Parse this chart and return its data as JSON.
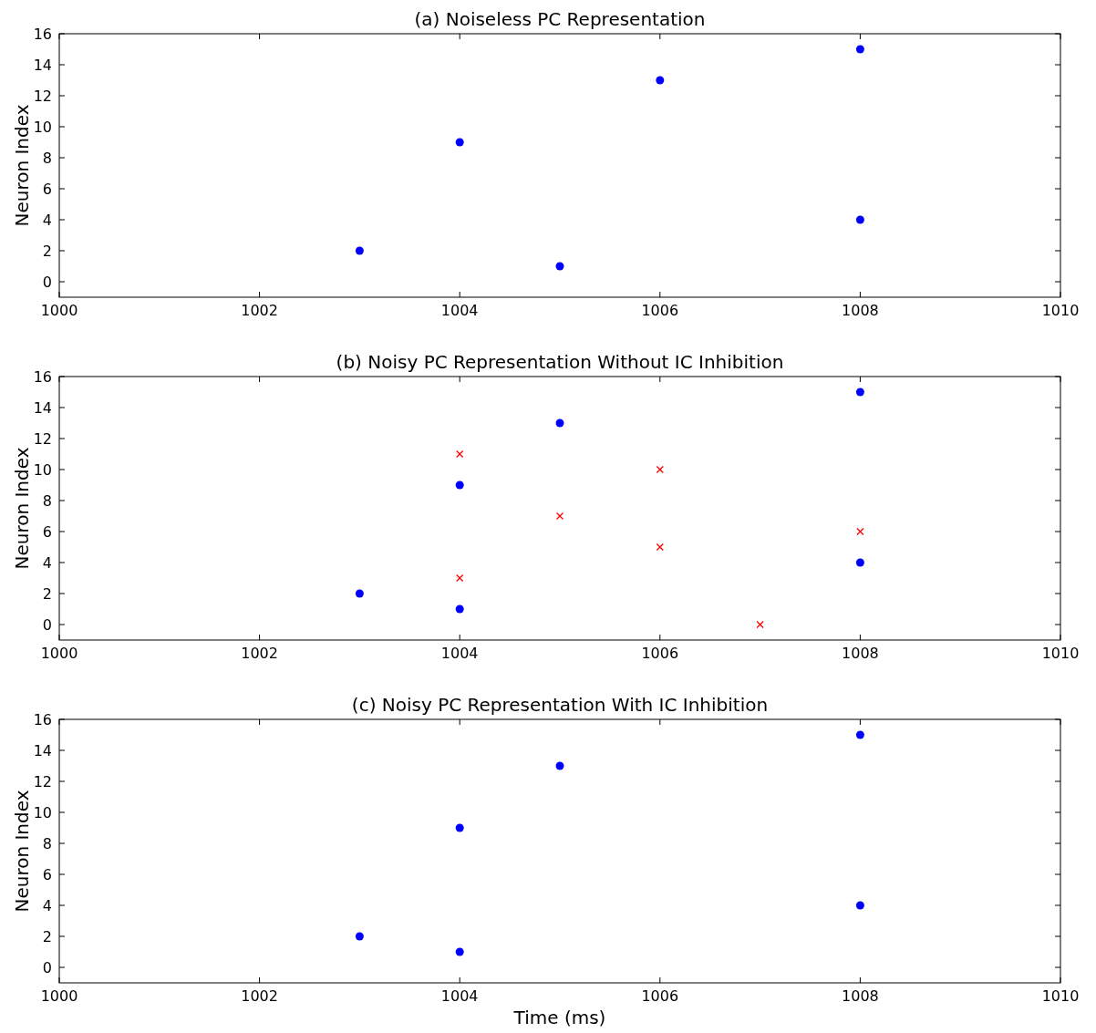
{
  "chart_data": [
    {
      "type": "scatter",
      "title": "(a) Noiseless PC Representation",
      "ylabel": "Neuron Index",
      "xlim": [
        1000,
        1010
      ],
      "xticks": [
        1000,
        1002,
        1004,
        1006,
        1008,
        1010
      ],
      "ylim": [
        -1,
        16
      ],
      "yticks": [
        0,
        2,
        4,
        6,
        8,
        10,
        12,
        14,
        16
      ],
      "series": [
        {
          "color": "#0000ff",
          "marker": "circle",
          "x": [
            1003,
            1004,
            1005,
            1006,
            1008,
            1008
          ],
          "values": [
            2,
            9,
            1,
            13,
            15,
            4
          ]
        }
      ]
    },
    {
      "type": "scatter",
      "title": "(b) Noisy PC Representation Without IC Inhibition",
      "ylabel": "Neuron Index",
      "xlim": [
        1000,
        1010
      ],
      "xticks": [
        1000,
        1002,
        1004,
        1006,
        1008,
        1010
      ],
      "ylim": [
        -1,
        16
      ],
      "yticks": [
        0,
        2,
        4,
        6,
        8,
        10,
        12,
        14,
        16
      ],
      "series": [
        {
          "color": "#0000ff",
          "marker": "circle",
          "x": [
            1003,
            1004,
            1004,
            1005,
            1008,
            1008
          ],
          "values": [
            2,
            9,
            1,
            13,
            15,
            4
          ]
        },
        {
          "color": "#ff0000",
          "marker": "cross",
          "x": [
            1004,
            1004,
            1005,
            1006,
            1006,
            1007,
            1008
          ],
          "values": [
            11,
            3,
            7,
            10,
            5,
            0,
            6
          ]
        }
      ]
    },
    {
      "type": "scatter",
      "title": "(c) Noisy PC Representation With IC Inhibition",
      "xlabel": "Time (ms)",
      "ylabel": "Neuron Index",
      "xlim": [
        1000,
        1010
      ],
      "xticks": [
        1000,
        1002,
        1004,
        1006,
        1008,
        1010
      ],
      "ylim": [
        -1,
        16
      ],
      "yticks": [
        0,
        2,
        4,
        6,
        8,
        10,
        12,
        14,
        16
      ],
      "series": [
        {
          "color": "#0000ff",
          "marker": "circle",
          "x": [
            1003,
            1004,
            1004,
            1005,
            1008,
            1008
          ],
          "values": [
            2,
            9,
            1,
            13,
            15,
            4
          ]
        }
      ]
    }
  ]
}
